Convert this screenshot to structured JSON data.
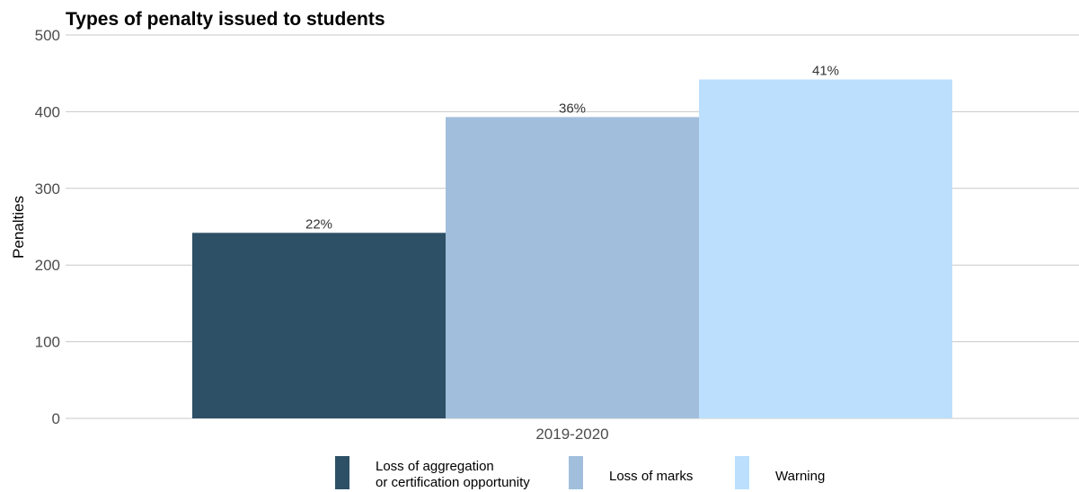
{
  "chart_data": {
    "type": "bar",
    "title": "Types of penalty issued to students",
    "xlabel": "",
    "ylabel": "Penalties",
    "categories": [
      "2019-2020"
    ],
    "ylim": [
      0,
      500
    ],
    "yticks": [
      0,
      100,
      200,
      300,
      400,
      500
    ],
    "grid": true,
    "legend_position": "bottom",
    "series": [
      {
        "name": "Loss of aggregation or certification opportunity",
        "values": [
          242
        ],
        "label": "22%",
        "color": "#2e5066"
      },
      {
        "name": "Loss of marks",
        "values": [
          393
        ],
        "label": "36%",
        "color": "#a1bfdc"
      },
      {
        "name": "Warning",
        "values": [
          442
        ],
        "label": "41%",
        "color": "#bbdffd"
      }
    ]
  }
}
